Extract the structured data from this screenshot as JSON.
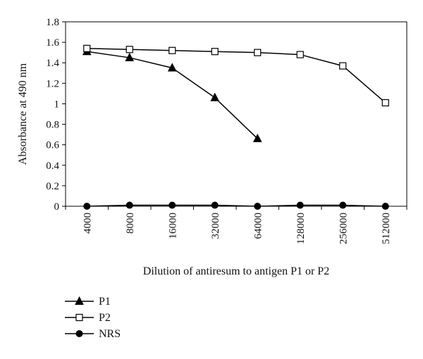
{
  "chart_data": {
    "type": "line",
    "xlabel": "Dilution of antiresum to antigen P1 or P2",
    "ylabel": "Absorbance at 490 nm",
    "ylim": [
      0,
      1.8
    ],
    "yticks": [
      "0",
      "0.2",
      "0.4",
      "0.6",
      "0.8",
      "1",
      "1.2",
      "1.4",
      "1.6",
      "1.8"
    ],
    "categories": [
      "4000",
      "8000",
      "16000",
      "32000",
      "64000",
      "128000",
      "256000",
      "512000"
    ],
    "legend_position": "bottom-left",
    "grid": false,
    "series": [
      {
        "name": "P1",
        "marker": "triangle",
        "values": [
          1.51,
          1.45,
          1.35,
          1.06,
          0.66,
          null,
          null,
          null
        ]
      },
      {
        "name": "P2",
        "marker": "open-square",
        "values": [
          1.54,
          1.53,
          1.52,
          1.51,
          1.5,
          1.48,
          1.37,
          1.01
        ]
      },
      {
        "name": "NRS",
        "marker": "circle",
        "values": [
          0.0,
          0.01,
          0.01,
          0.01,
          0.0,
          0.01,
          0.01,
          0.0
        ]
      }
    ]
  }
}
